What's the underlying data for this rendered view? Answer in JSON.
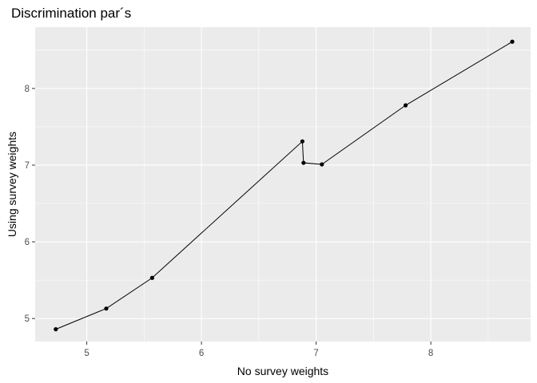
{
  "chart_data": {
    "type": "line",
    "title": "Discrimination par´s",
    "xlabel": "No survey weights",
    "ylabel": "Using survey weights",
    "xlim": [
      4.55,
      8.87
    ],
    "ylim": [
      4.7,
      8.8
    ],
    "x_ticks": [
      5,
      6,
      7,
      8
    ],
    "y_ticks": [
      5,
      6,
      7,
      8
    ],
    "x_tick_labels": [
      "5",
      "6",
      "7",
      "8"
    ],
    "y_tick_labels": [
      "5",
      "6",
      "7",
      "8"
    ],
    "grid": true,
    "markers": true,
    "series": [
      {
        "x": [
          4.73,
          5.17,
          5.57,
          6.88,
          6.89,
          7.05,
          7.78,
          8.71
        ],
        "y": [
          4.86,
          5.13,
          5.53,
          7.31,
          7.03,
          7.01,
          7.78,
          8.61
        ]
      }
    ],
    "colors": {
      "panel": "#ebebeb",
      "grid_major": "#ffffff",
      "line": "#000000",
      "point": "#000000",
      "tick_text": "#4d4d4d"
    }
  }
}
